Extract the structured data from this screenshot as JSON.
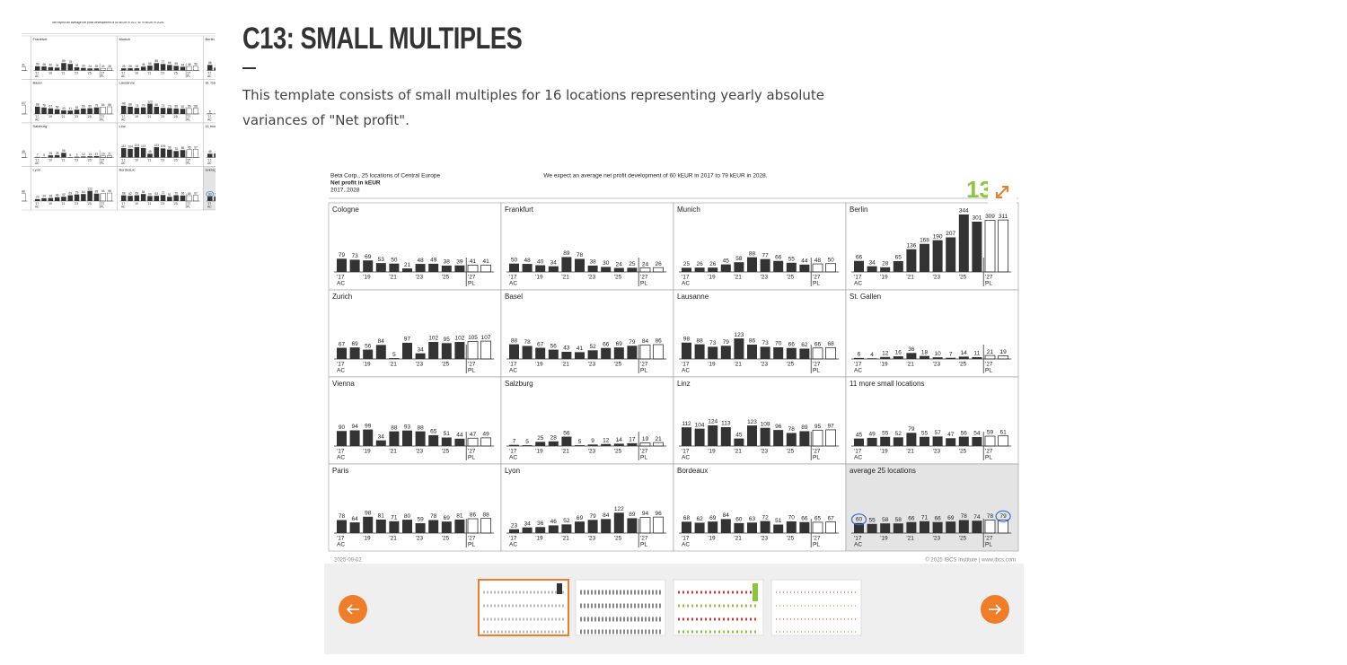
{
  "header": {
    "title": "C13: SMALL MULTIPLES",
    "description": "This template consists of small multiples for 16 locations representing yearly absolute variances of \"Net profit\"."
  },
  "chart": {
    "type": "bar",
    "company": "Beta Corp., 25 locations of Central Europe",
    "measure": "Net profit in kEUR",
    "period": "2017..2028",
    "message": "We expect an average net profit development of 60 kEUR in 2017 to 79 kEUR in 2028.",
    "badge": "13",
    "x_labels": [
      "'17",
      "'19",
      "'21",
      "'23",
      "'25",
      "'27"
    ],
    "scenarios": [
      "AC",
      "PL"
    ],
    "panels": [
      {
        "name": "Cologne",
        "values": [
          79,
          73,
          69,
          53,
          50,
          21,
          48,
          49,
          38,
          39,
          41,
          41
        ]
      },
      {
        "name": "Frankfurt",
        "values": [
          50,
          48,
          40,
          34,
          89,
          78,
          38,
          30,
          24,
          25,
          24,
          26
        ]
      },
      {
        "name": "Munich",
        "values": [
          25,
          26,
          26,
          45,
          58,
          88,
          77,
          66,
          55,
          44,
          48,
          50
        ]
      },
      {
        "name": "Berlin",
        "values": [
          66,
          34,
          28,
          65,
          136,
          168,
          190,
          207,
          344,
          301,
          309,
          311
        ]
      },
      {
        "name": "Zurich",
        "values": [
          67,
          69,
          56,
          84,
          5,
          97,
          34,
          102,
          95,
          102,
          105,
          107
        ]
      },
      {
        "name": "Basel",
        "values": [
          88,
          78,
          67,
          56,
          43,
          41,
          52,
          66,
          69,
          79,
          84,
          86
        ]
      },
      {
        "name": "Lausanne",
        "values": [
          98,
          88,
          73,
          79,
          123,
          86,
          73,
          70,
          66,
          62,
          66,
          68
        ]
      },
      {
        "name": "St. Gallen",
        "values": [
          6,
          4,
          12,
          16,
          36,
          18,
          10,
          7,
          14,
          11,
          21,
          19
        ]
      },
      {
        "name": "Vienna",
        "values": [
          90,
          94,
          99,
          34,
          88,
          93,
          88,
          65,
          51,
          44,
          47,
          49
        ]
      },
      {
        "name": "Salzburg",
        "values": [
          7,
          5,
          25,
          28,
          56,
          5,
          9,
          12,
          14,
          17,
          19,
          21
        ]
      },
      {
        "name": "Linz",
        "values": [
          112,
          104,
          124,
          113,
          45,
          123,
          109,
          96,
          78,
          89,
          95,
          97
        ]
      },
      {
        "name": "11 more small locations",
        "values": [
          45,
          49,
          55,
          52,
          79,
          55,
          57,
          47,
          56,
          54,
          59,
          61
        ]
      },
      {
        "name": "Paris",
        "values": [
          78,
          64,
          98,
          81,
          71,
          80,
          59,
          78,
          69,
          81,
          86,
          88
        ]
      },
      {
        "name": "Lyon",
        "values": [
          23,
          34,
          36,
          46,
          52,
          69,
          79,
          84,
          122,
          89,
          94,
          96
        ]
      },
      {
        "name": "Bordeaux",
        "values": [
          68,
          62,
          69,
          84,
          60,
          63,
          72,
          51,
          70,
          66,
          65,
          67
        ]
      },
      {
        "name": "average 25 locations",
        "values": [
          60,
          55,
          58,
          58,
          66,
          71,
          66,
          69,
          78,
          74,
          78,
          79
        ]
      }
    ],
    "date": "2025-09-02",
    "copyright": "© 2025 IBCS Institute | www.ibcs.com"
  }
}
